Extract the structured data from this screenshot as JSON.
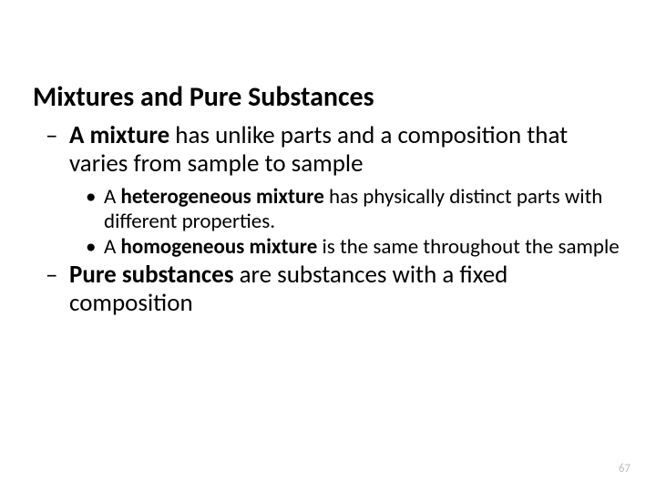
{
  "title": "Mixtures and Pure Substances",
  "l1a": {
    "dash": "–",
    "b1": "A mixture",
    "r1": " has unlike parts and a composition that varies from sample to sample"
  },
  "l2a": {
    "dot": "•",
    "t1": "A ",
    "b1": "heterogeneous mixture",
    "r1": " has physically distinct parts with different properties."
  },
  "l2b": {
    "dot": "•",
    "t1": "A ",
    "b1": "homogeneous mixture",
    "r1": " is the same throughout the sample"
  },
  "l1b": {
    "dash": "–",
    "b1": "Pure substances",
    "r1": " are substances with a fixed composition"
  },
  "page_number": "67",
  "colors": {
    "text": "#000000",
    "background": "#ffffff",
    "page_number": "#bfbfbf"
  },
  "typography": {
    "title_fontsize": 30,
    "level1_fontsize": 27,
    "level2_fontsize": 23,
    "pagenum_fontsize": 13,
    "font_family": "Calibri"
  }
}
